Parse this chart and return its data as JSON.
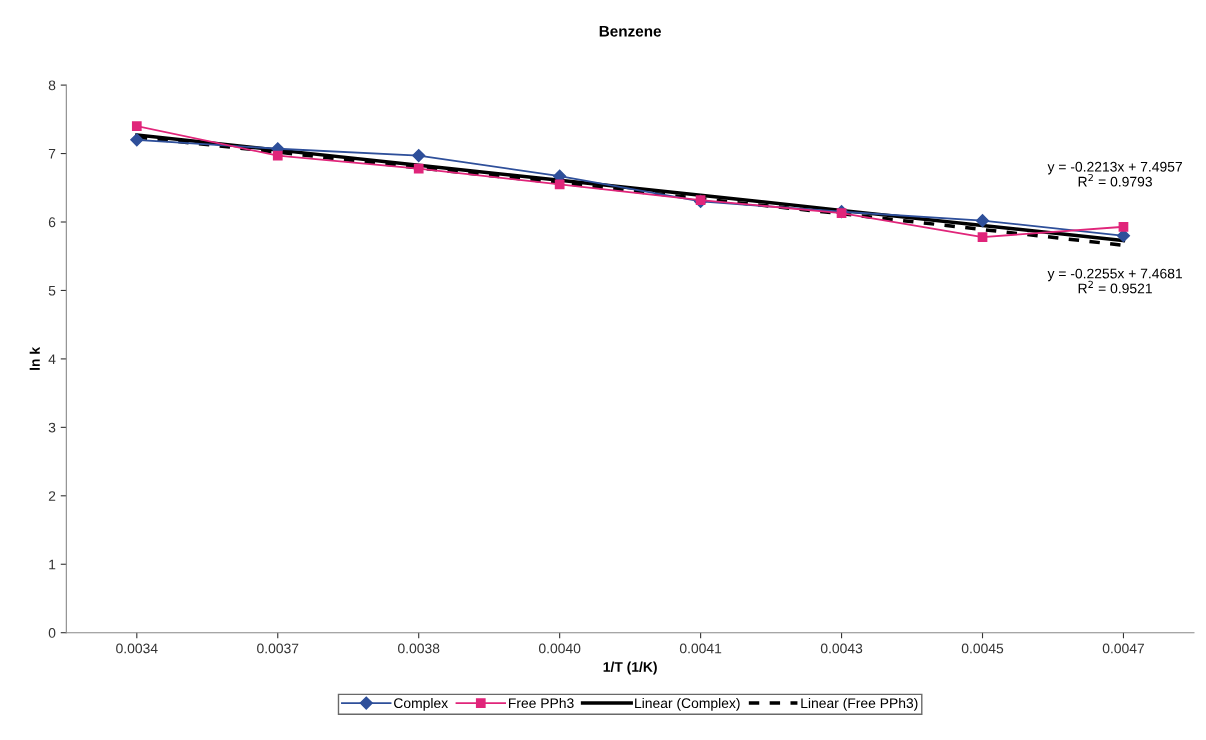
{
  "chart_data": {
    "type": "line",
    "title": "Benzene",
    "xlabel": "1/T (1/K)",
    "ylabel": "ln k",
    "categories": [
      "0.0034",
      "0.0037",
      "0.0038",
      "0.0040",
      "0.0041",
      "0.0043",
      "0.0045",
      "0.0047"
    ],
    "series": [
      {
        "name": "Complex",
        "color": "#2e4f9a",
        "marker": "diamond",
        "line_style": "solid",
        "values": [
          7.2,
          7.07,
          6.97,
          6.67,
          6.3,
          6.15,
          6.02,
          5.8
        ]
      },
      {
        "name": "Free PPh3",
        "color": "#e0257a",
        "marker": "square",
        "line_style": "solid",
        "values": [
          7.4,
          6.97,
          6.78,
          6.55,
          6.32,
          6.13,
          5.78,
          5.93
        ]
      },
      {
        "name": "Linear (Complex)",
        "color": "#000000",
        "marker": "none",
        "line_style": "solid",
        "values": [
          7.27,
          7.05,
          6.83,
          6.61,
          6.39,
          6.17,
          5.95,
          5.73
        ]
      },
      {
        "name": "Linear (Free PPh3)",
        "color": "#000000",
        "marker": "none",
        "line_style": "dashed",
        "values": [
          7.24,
          7.02,
          6.79,
          6.57,
          6.34,
          6.12,
          5.89,
          5.66
        ]
      }
    ],
    "ylim": [
      0,
      8
    ],
    "yticks": [
      0,
      1,
      2,
      3,
      4,
      5,
      6,
      7,
      8
    ],
    "grid": false,
    "legend": "bottom",
    "annotations": [
      "y = -0.2213x + 7.4957\nR$^{2}$ = 0.9793",
      "y = -0.2255x + 7.4681\nR$^{2}$ = 0.9521"
    ]
  }
}
